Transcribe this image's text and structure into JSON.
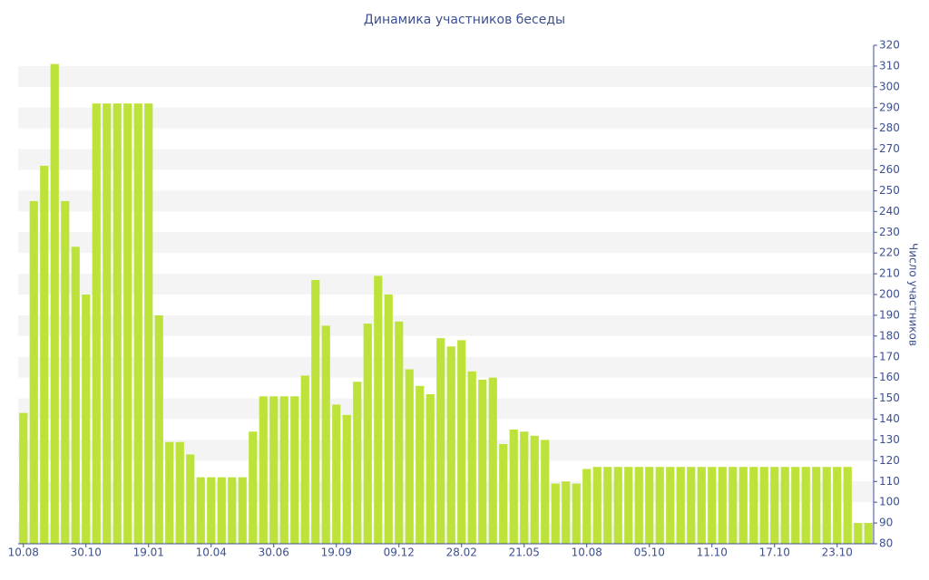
{
  "chart_data": {
    "type": "bar",
    "title": "Динамика участников беседы",
    "y_axis_label": "Число участников",
    "categories": [
      "10.08",
      null,
      null,
      null,
      null,
      null,
      "30.10",
      null,
      null,
      null,
      null,
      null,
      "19.01",
      null,
      null,
      null,
      null,
      null,
      "10.04",
      null,
      null,
      null,
      null,
      null,
      "30.06",
      null,
      null,
      null,
      null,
      null,
      "19.09",
      null,
      null,
      null,
      null,
      null,
      "09.12",
      null,
      null,
      null,
      null,
      null,
      "28.02",
      null,
      null,
      null,
      null,
      null,
      "21.05",
      null,
      null,
      null,
      null,
      null,
      "10.08",
      null,
      null,
      null,
      null,
      null,
      "05.10",
      null,
      null,
      null,
      null,
      null,
      "11.10",
      null,
      null,
      null,
      null,
      null,
      "17.10",
      null,
      null,
      null,
      null,
      null,
      "23.10",
      null,
      null,
      null
    ],
    "values": [
      143,
      245,
      262,
      311,
      245,
      223,
      200,
      292,
      292,
      292,
      292,
      292,
      292,
      190,
      129,
      129,
      123,
      112,
      112,
      112,
      112,
      112,
      134,
      151,
      151,
      151,
      151,
      161,
      207,
      185,
      147,
      142,
      158,
      186,
      209,
      200,
      187,
      164,
      156,
      152,
      179,
      175,
      178,
      163,
      159,
      160,
      128,
      135,
      134,
      132,
      130,
      109,
      110,
      109,
      116,
      117,
      117,
      117,
      117,
      117,
      117,
      117,
      117,
      117,
      117,
      117,
      117,
      117,
      117,
      117,
      117,
      117,
      117,
      117,
      117,
      117,
      117,
      117,
      117,
      117,
      90,
      90
    ],
    "color": "#bde33b",
    "ylim": [
      80,
      320
    ],
    "yticks": [
      80,
      90,
      100,
      110,
      120,
      130,
      140,
      150,
      160,
      170,
      180,
      190,
      200,
      210,
      220,
      230,
      240,
      250,
      260,
      270,
      280,
      290,
      300,
      310,
      320
    ],
    "grid": true
  }
}
